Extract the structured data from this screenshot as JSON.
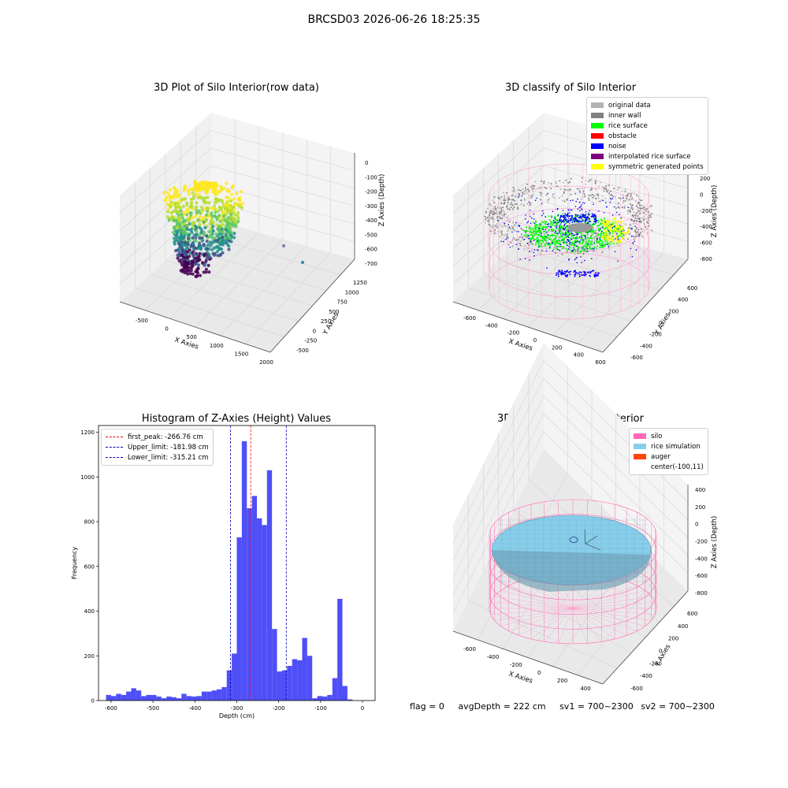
{
  "suptitle": "BRCSD03 2026-06-26 18:25:35",
  "chart_data": [
    {
      "type": "scatter",
      "title": "3D Plot of Silo Interior(row data)",
      "xlabel": "X Axies",
      "ylabel": "Y Axies",
      "zlabel": "Z Axies (Depth)",
      "xticks": [
        "-500",
        "0",
        "500",
        "1000",
        "1500",
        "2000"
      ],
      "yticks": [
        "-500",
        "-250",
        "0",
        "250",
        "500",
        "750",
        "1000",
        "1250"
      ],
      "zticks": [
        "0",
        "-100",
        "-200",
        "-300",
        "-400",
        "-500",
        "-600",
        "-700"
      ],
      "colormap": "viridis",
      "xlim": [
        -800,
        2000
      ],
      "ylim": [
        -600,
        1400
      ],
      "zlim": [
        -750,
        0
      ]
    },
    {
      "type": "scatter",
      "title": "3D classify of Silo Interior",
      "xlabel": "X Axies",
      "ylabel": "Y Axies",
      "zlabel": "Z Axies (Depth)",
      "xticks": [
        "-600",
        "-400",
        "-200",
        "0",
        "200",
        "400",
        "600"
      ],
      "yticks": [
        "-600",
        "-400",
        "-200",
        "0",
        "200",
        "400",
        "600"
      ],
      "zticks": [
        "200",
        "0",
        "-200",
        "-400",
        "-600",
        "-800"
      ],
      "legend": [
        {
          "label": "original data",
          "color": "#b3b3b3"
        },
        {
          "label": "inner wall",
          "color": "#808080"
        },
        {
          "label": "rice surface",
          "color": "#00ff00"
        },
        {
          "label": "obstacle",
          "color": "#ff0000"
        },
        {
          "label": "noise",
          "color": "#0000ff"
        },
        {
          "label": "interpolated rice surface",
          "color": "#800080"
        },
        {
          "label": "symmetric generated points",
          "color": "#ffff00"
        }
      ],
      "legend_position": "top-right"
    },
    {
      "type": "bar",
      "title": "Histogram of Z-Axies (Height) Values",
      "xlabel": "Depth (cm)",
      "ylabel": "Frequency",
      "xlim": [
        -630,
        30
      ],
      "ylim": [
        0,
        1230
      ],
      "xticks": [
        -600,
        -500,
        -400,
        -300,
        -200,
        -100,
        0
      ],
      "yticks": [
        0,
        200,
        400,
        600,
        800,
        1000,
        1200
      ],
      "bin_width": 12,
      "bin_start": -612,
      "values": [
        25,
        20,
        30,
        25,
        40,
        55,
        45,
        20,
        25,
        25,
        18,
        10,
        18,
        15,
        10,
        30,
        20,
        18,
        20,
        40,
        40,
        45,
        50,
        60,
        135,
        210,
        730,
        1160,
        860,
        915,
        815,
        785,
        1030,
        320,
        130,
        135,
        155,
        185,
        180,
        280,
        200,
        10,
        20,
        18,
        25,
        100,
        455,
        65,
        5
      ],
      "bar_color": "#4f4ff7",
      "vlines": [
        {
          "label": "first_peak: -266.76 cm",
          "x": -266.76,
          "color": "#ff0000"
        },
        {
          "label": "Upper_limit: -181.98 cm",
          "x": -181.98,
          "color": "#0000bb"
        },
        {
          "label": "Lower_limit: -315.21 cm",
          "x": -315.21,
          "color": "#0000bb"
        }
      ],
      "legend_position": "top-left"
    },
    {
      "type": "scatter",
      "title": "3D simulation of Silo Interior",
      "xlabel": "X Axies",
      "ylabel": "Y Axies",
      "zlabel": "Z Axies (Depth)",
      "xticks": [
        "-600",
        "-400",
        "-200",
        "0",
        "200",
        "400"
      ],
      "yticks": [
        "-600",
        "-400",
        "-200",
        "0",
        "200",
        "400",
        "600"
      ],
      "zticks": [
        "400",
        "200",
        "0",
        "-200",
        "-400",
        "-600",
        "-800"
      ],
      "legend": [
        {
          "label": "silo",
          "color": "#ff69b4"
        },
        {
          "label": "rice simulation",
          "color": "#87ceeb"
        },
        {
          "label": "auger",
          "color": "#ff4500"
        },
        {
          "label": "center(-100,11)",
          "color": ""
        }
      ],
      "legend_position": "top-right"
    }
  ],
  "footer": {
    "flag": "flag = 0",
    "avg_depth": "avgDepth = 222 cm",
    "sv1": "sv1 = 700~2300",
    "sv2": "sv2 = 700~2300"
  }
}
